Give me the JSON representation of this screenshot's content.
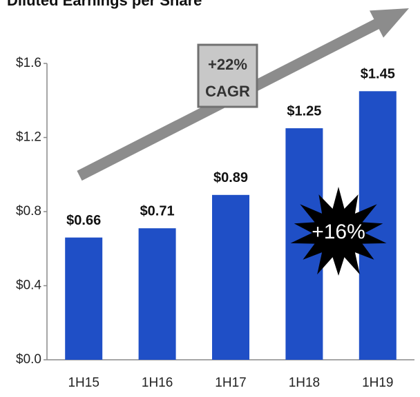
{
  "chart_data": {
    "type": "bar",
    "title": "Diluted Earnings per Share",
    "categories": [
      "1H15",
      "1H16",
      "1H17",
      "1H18",
      "1H19"
    ],
    "values": [
      0.66,
      0.71,
      0.89,
      1.25,
      1.45
    ],
    "value_labels": [
      "$0.66",
      "$0.71",
      "$0.89",
      "$1.25",
      "$1.45"
    ],
    "color": "#1f4fc6",
    "ylim": [
      0,
      1.6
    ],
    "yticks": [
      {
        "value": 0,
        "label": "$0.0"
      },
      {
        "value": 0.4,
        "label": "$0.4"
      },
      {
        "value": 0.8,
        "label": "$0.8"
      },
      {
        "value": 1.2,
        "label": "$1.2"
      },
      {
        "value": 1.6,
        "label": "$1.6"
      }
    ],
    "grid": false,
    "cagr_label": [
      "+22%",
      "CAGR"
    ],
    "burst_label": "+16%"
  }
}
